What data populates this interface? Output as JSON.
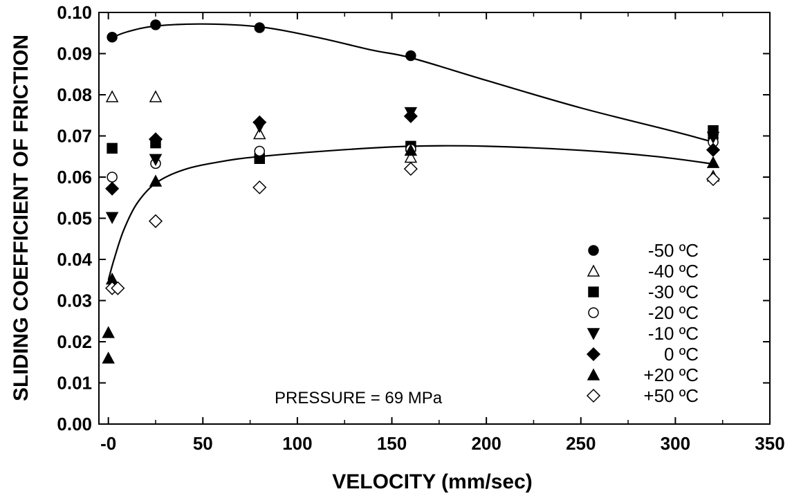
{
  "chart_data": {
    "type": "scatter",
    "title": "",
    "xlabel": "VELOCITY (mm/sec)",
    "ylabel": "SLIDING COEFFICIENT OF FRICTION",
    "xlim": [
      -5,
      350
    ],
    "ylim": [
      0.0,
      0.1
    ],
    "x_ticks": [
      0,
      50,
      100,
      150,
      200,
      250,
      300,
      350
    ],
    "x_tick_labels": [
      "-0",
      "50",
      "100",
      "150",
      "200",
      "250",
      "300",
      "350"
    ],
    "y_ticks": [
      0.0,
      0.01,
      0.02,
      0.03,
      0.04,
      0.05,
      0.06,
      0.07,
      0.08,
      0.09,
      0.1
    ],
    "y_tick_labels": [
      "0.00",
      "0.01",
      "0.02",
      "0.03",
      "0.04",
      "0.05",
      "0.06",
      "0.07",
      "0.08",
      "0.09",
      "0.10"
    ],
    "grid": false,
    "legend_position": "bottom-right",
    "annotation": "PRESSURE = 69 MPa",
    "series": [
      {
        "name": "-50 ºC",
        "marker": "filled-circle",
        "points": [
          [
            2,
            0.094
          ],
          [
            25,
            0.097
          ],
          [
            80,
            0.0963
          ],
          [
            160,
            0.0895
          ],
          [
            320,
            0.0695
          ]
        ]
      },
      {
        "name": "-40 ºC",
        "marker": "open-triangle-up",
        "points": [
          [
            2,
            0.0795
          ],
          [
            25,
            0.0795
          ],
          [
            80,
            0.0705
          ],
          [
            160,
            0.0648
          ],
          [
            320,
            0.0602
          ]
        ]
      },
      {
        "name": "-30 ºC",
        "marker": "filled-square",
        "points": [
          [
            2,
            0.067
          ],
          [
            25,
            0.0683
          ],
          [
            80,
            0.0645
          ],
          [
            160,
            0.0675
          ],
          [
            320,
            0.0713
          ]
        ]
      },
      {
        "name": "-20 ºC",
        "marker": "open-circle",
        "points": [
          [
            2,
            0.06
          ],
          [
            25,
            0.0633
          ],
          [
            80,
            0.0663
          ],
          [
            160,
            0.0668
          ],
          [
            320,
            0.0685
          ]
        ]
      },
      {
        "name": "-10 ºC",
        "marker": "filled-triangle-down",
        "points": [
          [
            2,
            0.0502
          ],
          [
            25,
            0.0643
          ],
          [
            80,
            0.0723
          ],
          [
            160,
            0.0757
          ],
          [
            320,
            0.0697
          ]
        ]
      },
      {
        "name": "0 ºC",
        "marker": "filled-diamond",
        "points": [
          [
            2,
            0.0572
          ],
          [
            25,
            0.0692
          ],
          [
            80,
            0.0733
          ],
          [
            160,
            0.0748
          ],
          [
            320,
            0.0666
          ]
        ]
      },
      {
        "name": "+20 ºC",
        "marker": "filled-triangle-up",
        "points": [
          [
            0,
            0.016
          ],
          [
            0,
            0.0222
          ],
          [
            2,
            0.0352
          ],
          [
            25,
            0.059
          ],
          [
            160,
            0.0665
          ],
          [
            320,
            0.0635
          ]
        ]
      },
      {
        "name": "+50 ºC",
        "marker": "open-diamond",
        "points": [
          [
            2,
            0.033
          ],
          [
            5,
            0.033
          ],
          [
            25,
            0.0493
          ],
          [
            80,
            0.0575
          ],
          [
            160,
            0.062
          ],
          [
            320,
            0.0595
          ]
        ]
      }
    ],
    "fit_curves": [
      {
        "points": [
          [
            0,
            0.0935
          ],
          [
            10,
            0.0953
          ],
          [
            25,
            0.0967
          ],
          [
            50,
            0.0972
          ],
          [
            80,
            0.0965
          ],
          [
            110,
            0.094
          ],
          [
            140,
            0.0908
          ],
          [
            160,
            0.089
          ],
          [
            200,
            0.0835
          ],
          [
            250,
            0.0768
          ],
          [
            300,
            0.071
          ],
          [
            320,
            0.0685
          ]
        ]
      },
      {
        "points": [
          [
            0,
            0.035
          ],
          [
            3,
            0.04
          ],
          [
            8,
            0.047
          ],
          [
            15,
            0.0535
          ],
          [
            25,
            0.0585
          ],
          [
            40,
            0.0618
          ],
          [
            60,
            0.0638
          ],
          [
            80,
            0.065
          ],
          [
            120,
            0.0665
          ],
          [
            160,
            0.0675
          ],
          [
            200,
            0.0675
          ],
          [
            250,
            0.0665
          ],
          [
            290,
            0.065
          ],
          [
            320,
            0.0632
          ]
        ]
      }
    ]
  }
}
